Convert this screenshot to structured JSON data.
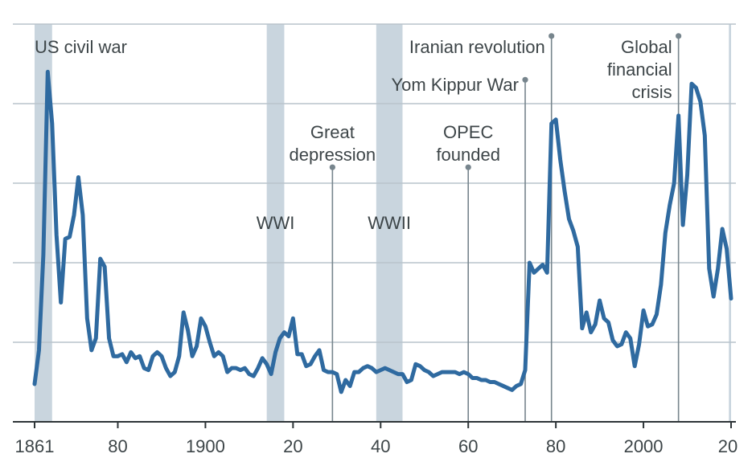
{
  "chart_data": {
    "type": "line",
    "title": "",
    "xlabel": "",
    "ylabel": "",
    "xlim": [
      1861,
      2020
    ],
    "ylim": [
      0,
      100
    ],
    "grid": true,
    "x_ticks": [
      {
        "value": 1861,
        "label": "1861"
      },
      {
        "value": 1880,
        "label": "80"
      },
      {
        "value": 1900,
        "label": "1900"
      },
      {
        "value": 1920,
        "label": "20"
      },
      {
        "value": 1940,
        "label": "40"
      },
      {
        "value": 1960,
        "label": "60"
      },
      {
        "value": 1980,
        "label": "80"
      },
      {
        "value": 2000,
        "label": "2000"
      },
      {
        "value": 2020,
        "label": "20"
      }
    ],
    "shaded_periods": [
      {
        "label": "US civil war",
        "start": 1861,
        "end": 1865
      },
      {
        "label": "WWI",
        "start": 1914,
        "end": 1918
      },
      {
        "label": "WWII",
        "start": 1939,
        "end": 1945
      },
      {
        "label": "",
        "start": 2019.5,
        "end": 2020
      }
    ],
    "events": [
      {
        "label_lines": [
          "Great",
          "depression"
        ],
        "year": 1929,
        "level": 64
      },
      {
        "label_lines": [
          "OPEC",
          "founded"
        ],
        "year": 1960,
        "level": 64
      },
      {
        "label_lines": [
          "Yom Kippur War"
        ],
        "year": 1973,
        "level": 86
      },
      {
        "label_lines": [
          "Iranian revolution"
        ],
        "year": 1979,
        "level": 97
      },
      {
        "label_lines": [
          "Global",
          "financial",
          "crisis"
        ],
        "year": 2008,
        "level": 97
      }
    ],
    "series": [
      {
        "color": "#2f6aa0",
        "points": [
          [
            1861,
            9.5
          ],
          [
            1862,
            18
          ],
          [
            1863,
            42
          ],
          [
            1864,
            88
          ],
          [
            1865,
            75
          ],
          [
            1866,
            47
          ],
          [
            1867,
            30
          ],
          [
            1868,
            46
          ],
          [
            1869,
            46.5
          ],
          [
            1870,
            52
          ],
          [
            1871,
            61.5
          ],
          [
            1872,
            52
          ],
          [
            1873,
            26
          ],
          [
            1874,
            18
          ],
          [
            1875,
            21
          ],
          [
            1876,
            41
          ],
          [
            1877,
            39
          ],
          [
            1878,
            21
          ],
          [
            1879,
            16.5
          ],
          [
            1880,
            16.5
          ],
          [
            1881,
            17
          ],
          [
            1882,
            15
          ],
          [
            1883,
            17.5
          ],
          [
            1884,
            16
          ],
          [
            1885,
            16.5
          ],
          [
            1886,
            13.5
          ],
          [
            1887,
            13
          ],
          [
            1888,
            16.5
          ],
          [
            1889,
            17.5
          ],
          [
            1890,
            16.5
          ],
          [
            1891,
            13.5
          ],
          [
            1892,
            11.5
          ],
          [
            1893,
            12.5
          ],
          [
            1894,
            16.5
          ],
          [
            1895,
            27.5
          ],
          [
            1896,
            23
          ],
          [
            1897,
            16.5
          ],
          [
            1898,
            19
          ],
          [
            1899,
            26
          ],
          [
            1900,
            24
          ],
          [
            1901,
            20
          ],
          [
            1902,
            16.5
          ],
          [
            1903,
            17.5
          ],
          [
            1904,
            16.5
          ],
          [
            1905,
            12.5
          ],
          [
            1906,
            13.5
          ],
          [
            1907,
            13.5
          ],
          [
            1908,
            13
          ],
          [
            1909,
            13.5
          ],
          [
            1910,
            12
          ],
          [
            1911,
            11.5
          ],
          [
            1912,
            13.5
          ],
          [
            1913,
            16
          ],
          [
            1914,
            14.5
          ],
          [
            1915,
            12
          ],
          [
            1916,
            17.5
          ],
          [
            1917,
            21
          ],
          [
            1918,
            22.5
          ],
          [
            1919,
            21.5
          ],
          [
            1920,
            26
          ],
          [
            1921,
            17
          ],
          [
            1922,
            17
          ],
          [
            1923,
            14
          ],
          [
            1924,
            14.5
          ],
          [
            1925,
            16.5
          ],
          [
            1926,
            18
          ],
          [
            1927,
            13
          ],
          [
            1928,
            12.5
          ],
          [
            1929,
            12.5
          ],
          [
            1930,
            12
          ],
          [
            1931,
            7.5
          ],
          [
            1932,
            10.5
          ],
          [
            1933,
            9
          ],
          [
            1934,
            12.5
          ],
          [
            1935,
            12.5
          ],
          [
            1936,
            13.5
          ],
          [
            1937,
            14
          ],
          [
            1938,
            13.5
          ],
          [
            1939,
            12.5
          ],
          [
            1940,
            13
          ],
          [
            1941,
            13.5
          ],
          [
            1942,
            13
          ],
          [
            1943,
            12.5
          ],
          [
            1944,
            12
          ],
          [
            1945,
            12
          ],
          [
            1946,
            10
          ],
          [
            1947,
            10.5
          ],
          [
            1948,
            14.5
          ],
          [
            1949,
            14
          ],
          [
            1950,
            13
          ],
          [
            1951,
            12.5
          ],
          [
            1952,
            11.5
          ],
          [
            1953,
            12
          ],
          [
            1954,
            12.5
          ],
          [
            1955,
            12.5
          ],
          [
            1956,
            12.5
          ],
          [
            1957,
            12.5
          ],
          [
            1958,
            12
          ],
          [
            1959,
            12.5
          ],
          [
            1960,
            12
          ],
          [
            1961,
            11
          ],
          [
            1962,
            11
          ],
          [
            1963,
            10.5
          ],
          [
            1964,
            10.5
          ],
          [
            1965,
            10
          ],
          [
            1966,
            10
          ],
          [
            1967,
            9.5
          ],
          [
            1968,
            9
          ],
          [
            1969,
            8.5
          ],
          [
            1970,
            8
          ],
          [
            1971,
            9
          ],
          [
            1972,
            9.5
          ],
          [
            1973,
            13
          ],
          [
            1974,
            40
          ],
          [
            1975,
            37.5
          ],
          [
            1976,
            38.5
          ],
          [
            1977,
            39.5
          ],
          [
            1978,
            37.5
          ],
          [
            1979,
            75
          ],
          [
            1980,
            76
          ],
          [
            1981,
            66
          ],
          [
            1982,
            58
          ],
          [
            1983,
            51
          ],
          [
            1984,
            48
          ],
          [
            1985,
            44
          ],
          [
            1986,
            23.5
          ],
          [
            1987,
            27.5
          ],
          [
            1988,
            22.5
          ],
          [
            1989,
            24.5
          ],
          [
            1990,
            30.5
          ],
          [
            1991,
            26
          ],
          [
            1992,
            25
          ],
          [
            1993,
            20.5
          ],
          [
            1994,
            19
          ],
          [
            1995,
            19.5
          ],
          [
            1996,
            22.5
          ],
          [
            1997,
            21
          ],
          [
            1998,
            14
          ],
          [
            1999,
            19.5
          ],
          [
            2000,
            28
          ],
          [
            2001,
            24
          ],
          [
            2002,
            24.5
          ],
          [
            2003,
            27
          ],
          [
            2004,
            34.5
          ],
          [
            2005,
            47.5
          ],
          [
            2006,
            54.5
          ],
          [
            2007,
            60
          ],
          [
            2008,
            77
          ],
          [
            2009,
            49.5
          ],
          [
            2010,
            62
          ],
          [
            2011,
            85
          ],
          [
            2012,
            84
          ],
          [
            2013,
            80.5
          ],
          [
            2014,
            72
          ],
          [
            2015,
            38.5
          ],
          [
            2016,
            31.5
          ],
          [
            2017,
            38.5
          ],
          [
            2018,
            48.5
          ],
          [
            2019,
            43.5
          ],
          [
            2020,
            31
          ]
        ]
      }
    ]
  }
}
